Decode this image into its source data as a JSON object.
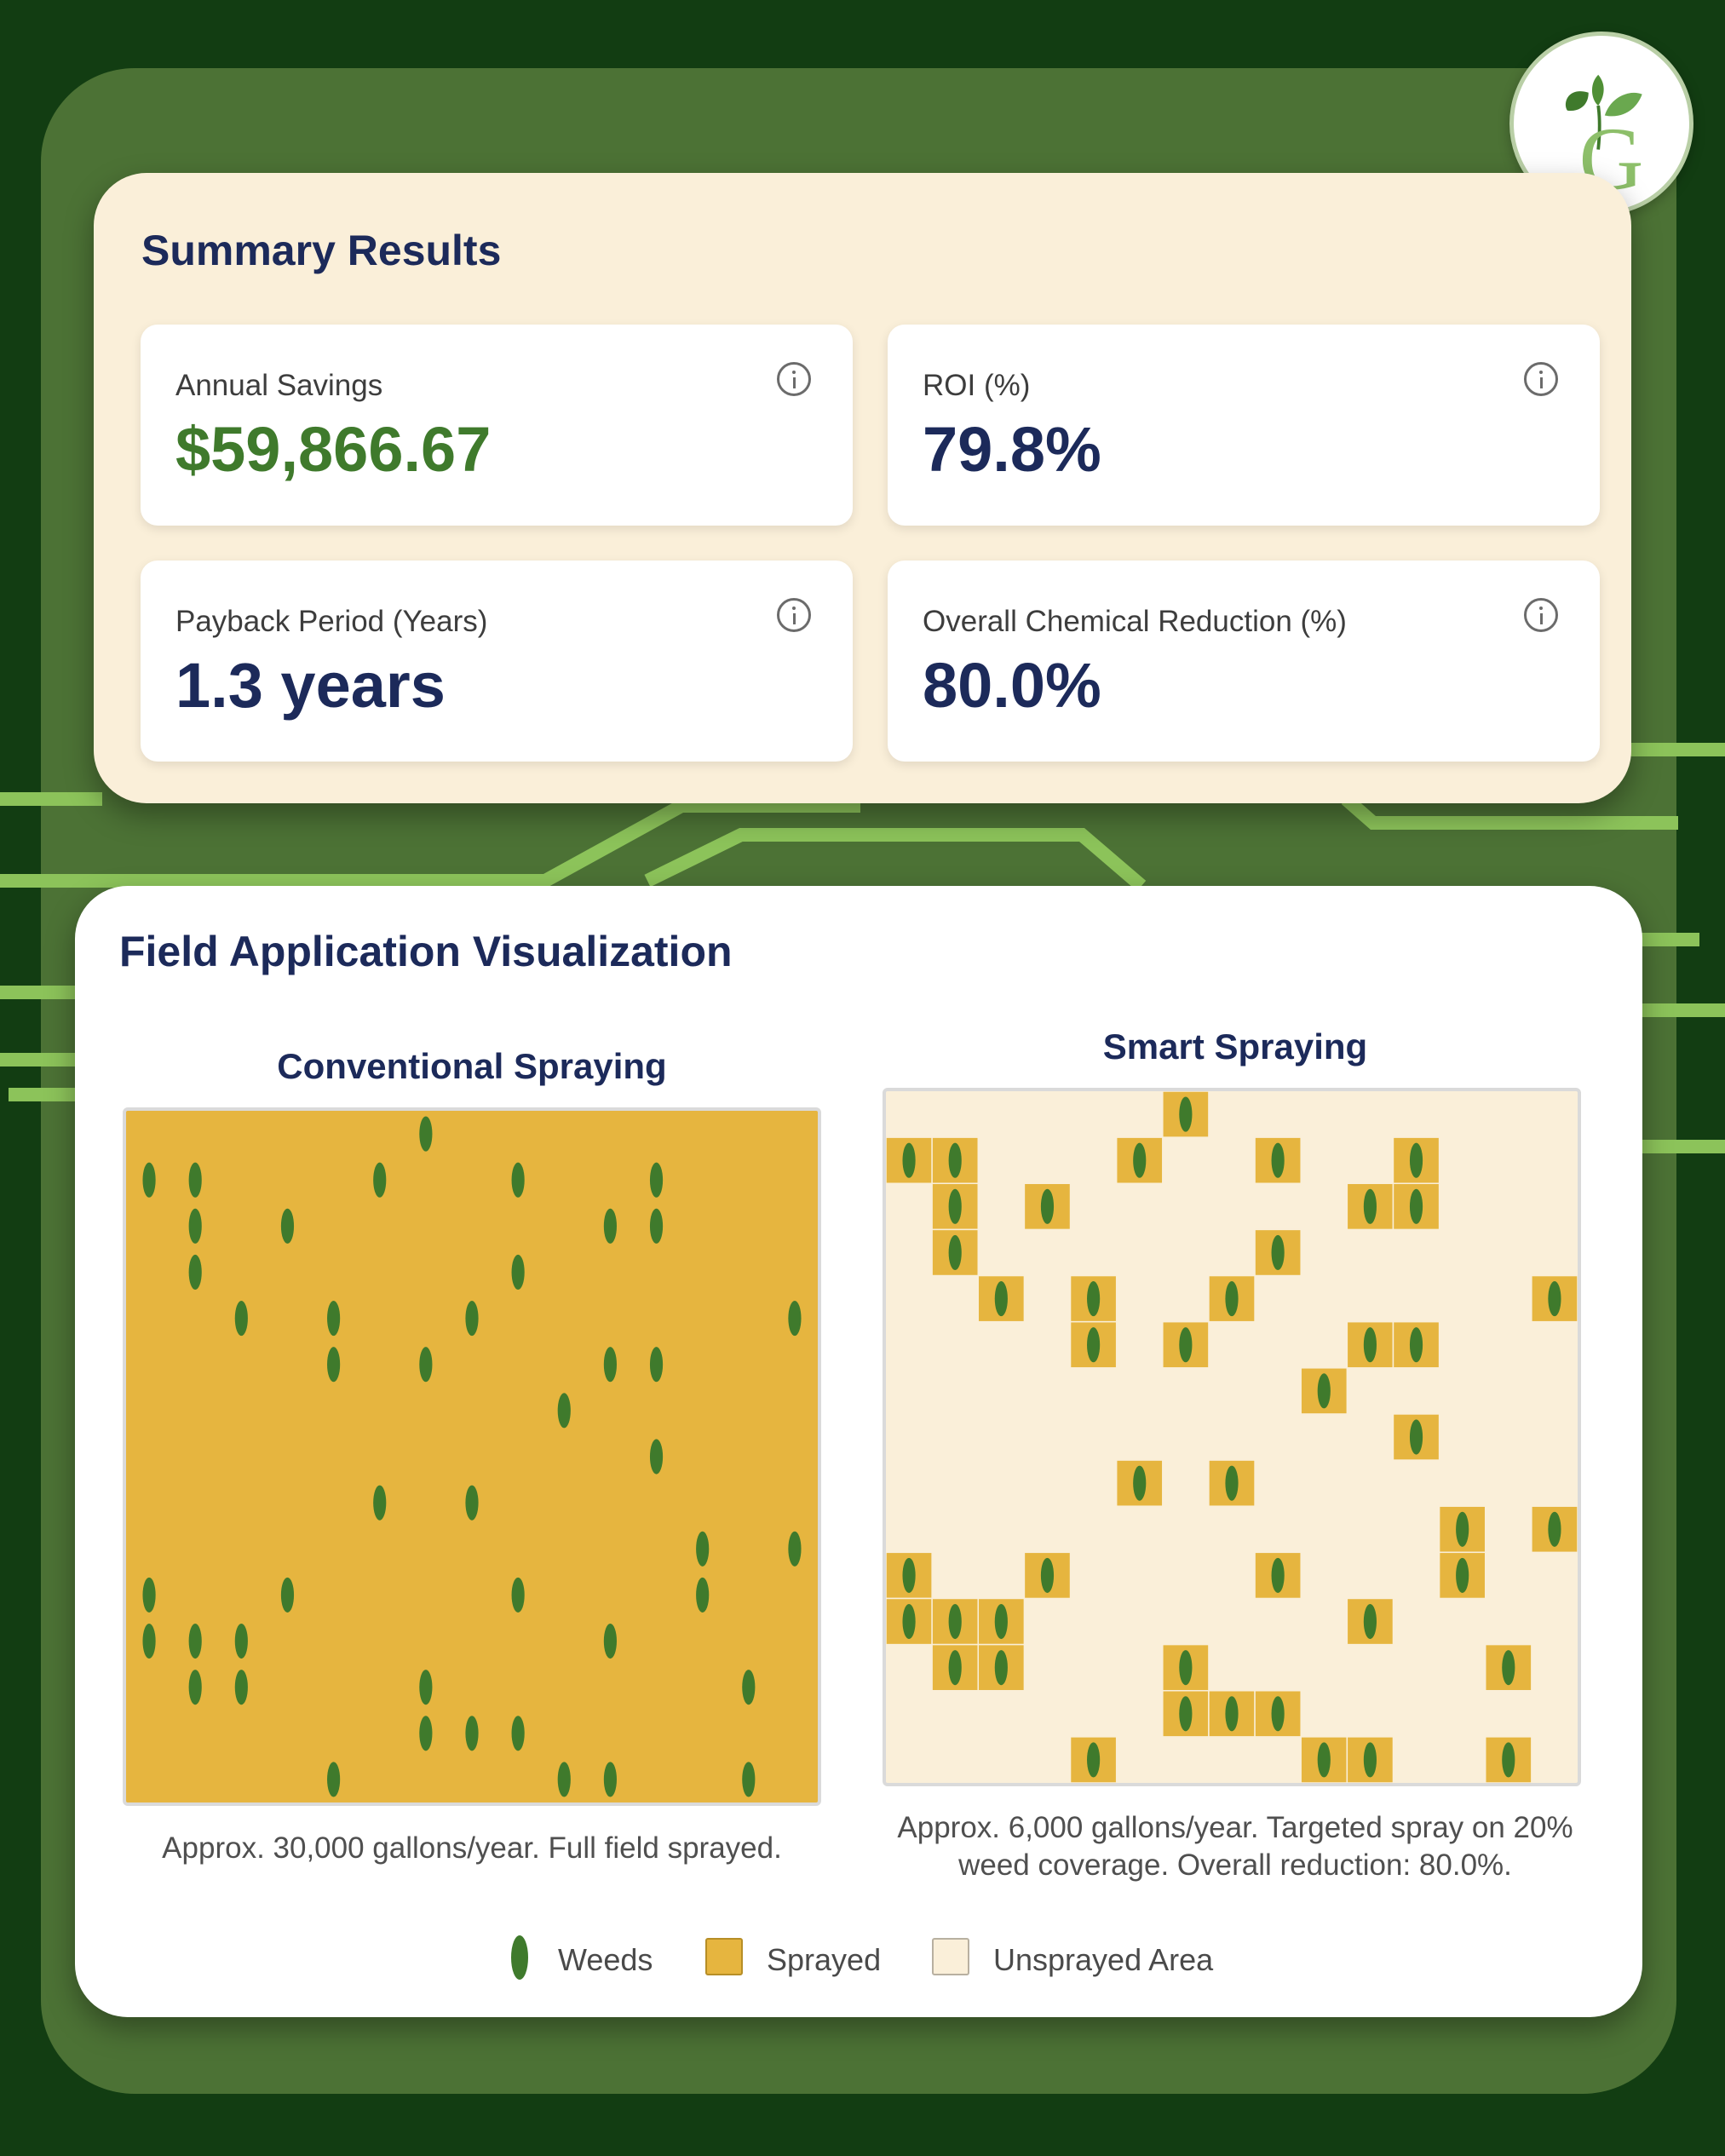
{
  "theme": {
    "background": "#123d12",
    "panel": "#4c7235",
    "circuit": "#8cc35a",
    "weed": "#3f7a2c",
    "sprayed": "#e6b53f",
    "unsprayed": "#faefd9",
    "title": "#1c2a5a",
    "savings_value": "#3f7a2c"
  },
  "logo": {
    "letter": "G",
    "icon": "leaf-g-logo"
  },
  "summary": {
    "title": "Summary Results",
    "metrics": [
      {
        "label": "Annual Savings",
        "value": "$59,866.67",
        "info_icon": "info-icon"
      },
      {
        "label": "ROI (%)",
        "value": "79.8%",
        "info_icon": "info-icon"
      },
      {
        "label": "Payback Period (Years)",
        "value": "1.3 years",
        "info_icon": "info-icon"
      },
      {
        "label": "Overall Chemical Reduction (%)",
        "value": "80.0%",
        "info_icon": "info-icon"
      }
    ]
  },
  "visualization": {
    "title": "Field Application Visualization",
    "grid_size": 15,
    "conventional": {
      "title": "Conventional Spraying",
      "caption": "Approx. 30,000 gallons/year. Full field sprayed.",
      "sprayed": "all",
      "weed_cells": [
        [
          0,
          6
        ],
        [
          1,
          0
        ],
        [
          1,
          1
        ],
        [
          1,
          5
        ],
        [
          1,
          8
        ],
        [
          1,
          11
        ],
        [
          2,
          1
        ],
        [
          2,
          3
        ],
        [
          2,
          10
        ],
        [
          2,
          11
        ],
        [
          3,
          1
        ],
        [
          3,
          8
        ],
        [
          4,
          2
        ],
        [
          4,
          4
        ],
        [
          4,
          7
        ],
        [
          4,
          14
        ],
        [
          5,
          4
        ],
        [
          5,
          6
        ],
        [
          5,
          10
        ],
        [
          5,
          11
        ],
        [
          6,
          9
        ],
        [
          7,
          11
        ],
        [
          8,
          5
        ],
        [
          8,
          7
        ],
        [
          9,
          12
        ],
        [
          9,
          14
        ],
        [
          10,
          0
        ],
        [
          10,
          3
        ],
        [
          10,
          8
        ],
        [
          10,
          12
        ],
        [
          11,
          0
        ],
        [
          11,
          1
        ],
        [
          11,
          2
        ],
        [
          11,
          10
        ],
        [
          12,
          1
        ],
        [
          12,
          2
        ],
        [
          12,
          6
        ],
        [
          12,
          13
        ],
        [
          13,
          6
        ],
        [
          13,
          7
        ],
        [
          13,
          8
        ],
        [
          14,
          4
        ],
        [
          14,
          9
        ],
        [
          14,
          10
        ],
        [
          14,
          13
        ]
      ]
    },
    "smart": {
      "title": "Smart Spraying",
      "caption_line1": "Approx. 6,000 gallons/year. Targeted spray on 20%",
      "caption_line2": "weed coverage. Overall reduction: 80.0%.",
      "sprayed": "weed_cells",
      "weed_cells": [
        [
          0,
          6
        ],
        [
          1,
          0
        ],
        [
          1,
          1
        ],
        [
          1,
          5
        ],
        [
          1,
          8
        ],
        [
          1,
          11
        ],
        [
          2,
          1
        ],
        [
          2,
          3
        ],
        [
          2,
          10
        ],
        [
          2,
          11
        ],
        [
          3,
          1
        ],
        [
          3,
          8
        ],
        [
          4,
          2
        ],
        [
          4,
          4
        ],
        [
          4,
          7
        ],
        [
          4,
          14
        ],
        [
          5,
          4
        ],
        [
          5,
          6
        ],
        [
          5,
          10
        ],
        [
          5,
          11
        ],
        [
          6,
          9
        ],
        [
          7,
          11
        ],
        [
          8,
          5
        ],
        [
          8,
          7
        ],
        [
          9,
          12
        ],
        [
          9,
          14
        ],
        [
          10,
          0
        ],
        [
          10,
          3
        ],
        [
          10,
          8
        ],
        [
          10,
          12
        ],
        [
          11,
          0
        ],
        [
          11,
          1
        ],
        [
          11,
          2
        ],
        [
          11,
          10
        ],
        [
          12,
          1
        ],
        [
          12,
          2
        ],
        [
          12,
          6
        ],
        [
          12,
          13
        ],
        [
          13,
          6
        ],
        [
          13,
          7
        ],
        [
          13,
          8
        ],
        [
          14,
          4
        ],
        [
          14,
          9
        ],
        [
          14,
          10
        ],
        [
          14,
          13
        ]
      ]
    },
    "legend": [
      {
        "label": "Weeds",
        "icon": "weed-icon"
      },
      {
        "label": "Sprayed",
        "icon": "sprayed-swatch"
      },
      {
        "label": "Unsprayed Area",
        "icon": "unsprayed-swatch"
      }
    ]
  }
}
